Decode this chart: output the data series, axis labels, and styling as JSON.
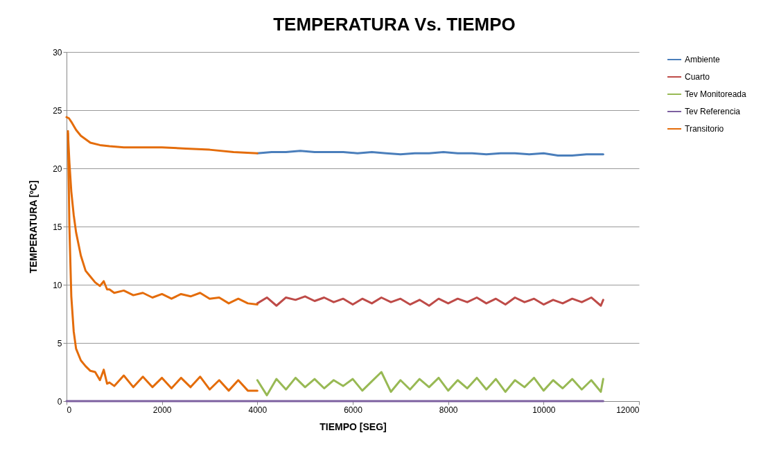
{
  "chart_data": {
    "type": "line",
    "title": "TEMPERATURA Vs. TIEMPO",
    "xlabel": "TIEMPO [SEG]",
    "ylabel": "TEMPERATURA  [ºC]",
    "xlim": [
      0,
      12000
    ],
    "xticks": [
      0,
      2000,
      4000,
      6000,
      8000,
      10000,
      12000
    ],
    "ylim": [
      0,
      30
    ],
    "yticks": [
      0,
      5,
      10,
      15,
      20,
      25,
      30
    ],
    "grid": "y",
    "legend": "right",
    "line_style": "solid",
    "series": [
      {
        "name": "Ambiente",
        "color": "#4a7ebb",
        "x": [
          4000,
          4300,
          4600,
          4900,
          5200,
          5500,
          5800,
          6100,
          6400,
          6700,
          7000,
          7300,
          7600,
          7900,
          8200,
          8500,
          8800,
          9100,
          9400,
          9700,
          10000,
          10300,
          10600,
          10900,
          11200,
          11250
        ],
        "values": [
          21.3,
          21.4,
          21.4,
          21.5,
          21.4,
          21.4,
          21.4,
          21.3,
          21.4,
          21.3,
          21.2,
          21.3,
          21.3,
          21.4,
          21.3,
          21.3,
          21.2,
          21.3,
          21.3,
          21.2,
          21.3,
          21.1,
          21.1,
          21.2,
          21.2,
          21.2
        ]
      },
      {
        "name": "Cuarto",
        "color": "#be4b48",
        "x": [
          4000,
          4200,
          4400,
          4600,
          4800,
          5000,
          5200,
          5400,
          5600,
          5800,
          6000,
          6200,
          6400,
          6600,
          6800,
          7000,
          7200,
          7400,
          7600,
          7800,
          8000,
          8200,
          8400,
          8600,
          8800,
          9000,
          9200,
          9400,
          9600,
          9800,
          10000,
          10200,
          10400,
          10600,
          10800,
          11000,
          11200,
          11250
        ],
        "values": [
          8.4,
          8.9,
          8.2,
          8.9,
          8.7,
          9.0,
          8.6,
          8.9,
          8.5,
          8.8,
          8.3,
          8.8,
          8.4,
          8.9,
          8.5,
          8.8,
          8.3,
          8.7,
          8.2,
          8.8,
          8.4,
          8.8,
          8.5,
          8.9,
          8.4,
          8.8,
          8.3,
          8.9,
          8.5,
          8.8,
          8.3,
          8.7,
          8.4,
          8.8,
          8.5,
          8.9,
          8.2,
          8.7
        ]
      },
      {
        "name": "Tev Monitoreada",
        "color": "#98b954",
        "x": [
          4000,
          4200,
          4400,
          4600,
          4800,
          5000,
          5200,
          5400,
          5600,
          5800,
          6000,
          6200,
          6400,
          6600,
          6800,
          7000,
          7200,
          7400,
          7600,
          7800,
          8000,
          8200,
          8400,
          8600,
          8800,
          9000,
          9200,
          9400,
          9600,
          9800,
          10000,
          10200,
          10400,
          10600,
          10800,
          11000,
          11200,
          11250
        ],
        "values": [
          1.8,
          0.5,
          1.9,
          1.0,
          2.0,
          1.2,
          1.9,
          1.1,
          1.8,
          1.3,
          1.9,
          0.9,
          1.7,
          2.5,
          0.8,
          1.8,
          1.0,
          1.9,
          1.2,
          2.0,
          0.9,
          1.8,
          1.1,
          2.0,
          1.0,
          1.9,
          0.8,
          1.8,
          1.2,
          2.0,
          0.9,
          1.8,
          1.1,
          1.9,
          1.0,
          1.8,
          0.8,
          1.9
        ]
      },
      {
        "name": "Tev Referencia",
        "color": "#7d60a0",
        "x": [
          0,
          11250
        ],
        "values": [
          0,
          0
        ]
      },
      {
        "name": "Transitorio",
        "color": "#e46c0a",
        "x": [
          0,
          50,
          100,
          200,
          300,
          400,
          500,
          700,
          900,
          1200,
          1500,
          2000,
          2500,
          3000,
          3500,
          4000
        ],
        "values": [
          24.4,
          24.3,
          24.0,
          23.3,
          22.8,
          22.5,
          22.2,
          22.0,
          21.9,
          21.8,
          21.8,
          21.8,
          21.7,
          21.6,
          21.4,
          21.3
        ]
      },
      {
        "color": "#e46c0a",
        "x": [
          30,
          60,
          100,
          150,
          200,
          300,
          400,
          500,
          600,
          700,
          780,
          850,
          900,
          1000,
          1200,
          1400,
          1600,
          1800,
          2000,
          2200,
          2400,
          2600,
          2800,
          3000,
          3200,
          3400,
          3600,
          3800,
          4000
        ],
        "values": [
          23.0,
          20.5,
          18,
          16,
          14.5,
          12.5,
          11.2,
          10.7,
          10.2,
          9.9,
          10.3,
          9.6,
          9.6,
          9.3,
          9.5,
          9.1,
          9.3,
          8.9,
          9.2,
          8.8,
          9.2,
          9.0,
          9.3,
          8.8,
          8.9,
          8.4,
          8.8,
          8.4,
          8.3
        ]
      },
      {
        "color": "#e46c0a",
        "x": [
          30,
          60,
          100,
          150,
          200,
          300,
          400,
          500,
          600,
          700,
          780,
          850,
          900,
          1000,
          1200,
          1400,
          1600,
          1800,
          2000,
          2200,
          2400,
          2600,
          2800,
          3000,
          3200,
          3400,
          3600,
          3800,
          4000
        ],
        "values": [
          23.2,
          15,
          9,
          6,
          4.5,
          3.5,
          3.0,
          2.6,
          2.5,
          1.8,
          2.7,
          1.5,
          1.6,
          1.3,
          2.2,
          1.2,
          2.1,
          1.2,
          2.0,
          1.1,
          2.0,
          1.2,
          2.1,
          1.0,
          1.8,
          0.9,
          1.8,
          0.9,
          0.9
        ]
      }
    ]
  }
}
